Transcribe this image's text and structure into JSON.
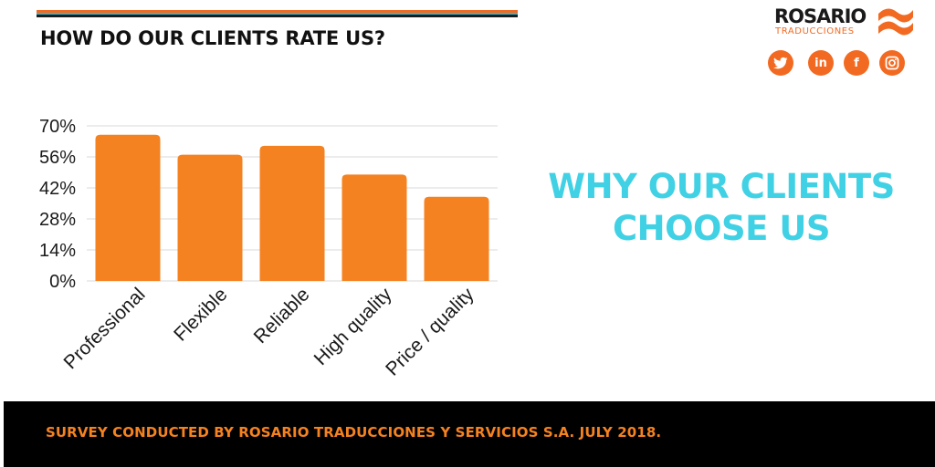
{
  "header": {
    "title": "HOW DO OUR CLIENTS RATE US?"
  },
  "brand": {
    "name": "ROSARIO",
    "subtitle": "TRADUCCIONES",
    "accent_color": "#f26a21"
  },
  "social": [
    {
      "icon": "twitter-icon",
      "glyph": "🐦"
    },
    {
      "icon": "linkedin-icon",
      "glyph": "in"
    },
    {
      "icon": "facebook-icon",
      "glyph": "f"
    },
    {
      "icon": "instagram-icon",
      "glyph": "◎"
    }
  ],
  "headline": {
    "line1": "WHY OUR CLIENTS",
    "line2": "CHOOSE US",
    "color": "#40d1e5"
  },
  "footer": {
    "text": "SURVEY CONDUCTED BY ROSARIO TRADUCCIONES Y SERVICIOS S.A. JULY 2018."
  },
  "chart_data": {
    "type": "bar",
    "categories": [
      "Professional",
      "Flexible",
      "Reliable",
      "High quality",
      "Price / quality"
    ],
    "values": [
      66,
      57,
      61,
      48,
      38
    ],
    "yticks": [
      "0%",
      "14%",
      "28%",
      "42%",
      "56%",
      "70%"
    ],
    "ylim": [
      0,
      70
    ],
    "grid": true,
    "bar_color": "#f58220",
    "title": "",
    "xlabel": "",
    "ylabel": ""
  }
}
